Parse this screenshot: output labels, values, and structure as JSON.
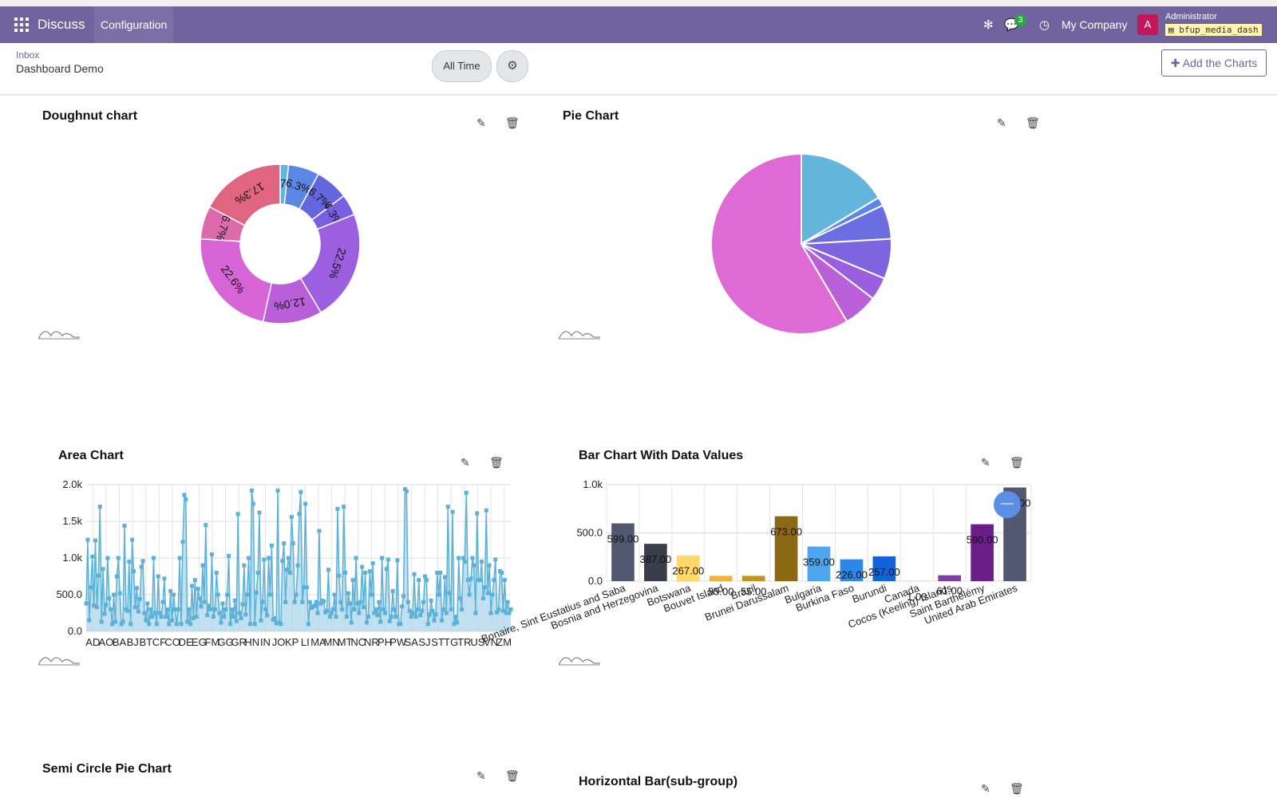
{
  "navbar": {
    "app_name": "Discuss",
    "menu": "Configuration",
    "message_count": "3",
    "company": "My Company",
    "avatar_letter": "A",
    "user": "Administrator",
    "database": "bfup_media_dash"
  },
  "control": {
    "breadcrumb_parent": "Inbox",
    "breadcrumb_current": "Dashboard Demo",
    "filter_label": "All Time",
    "add_button": "Add the Charts"
  },
  "cards": {
    "doughnut": "Doughnut chart",
    "pie": "Pie Chart",
    "area": "Area Chart",
    "bar": "Bar Chart With Data Values",
    "semi": "Semi Circle Pie Chart",
    "hbar": "Horizontal Bar(sub-group)"
  },
  "colors": {
    "accent": "#71639e",
    "doughnut": [
      "#64b5dc",
      "#5b86e5",
      "#6366dc",
      "#7a60e0",
      "#9c5fe0",
      "#b960d8",
      "#d865d5",
      "#dd6aab",
      "#e06581"
    ],
    "bars": [
      "#535871",
      "#3a3d4a",
      "#ffd86b",
      "#f0b33a",
      "#c29520",
      "#8b6914",
      "#4ea6f0",
      "#2e86e6",
      "#1262d8",
      "#b06fd0",
      "#7d3fa1",
      "#6a1f86"
    ]
  },
  "chart_data": [
    {
      "type": "pie",
      "variant": "doughnut",
      "title": "Doughnut chart",
      "slices": [
        1.7,
        6.3,
        6.7,
        4.3,
        22.5,
        12.0,
        22.6,
        6.7,
        17.3
      ],
      "labels": [
        "1.7%",
        "6.3%",
        "6.7%",
        "4.3%",
        "22.5%",
        "12.0%",
        "22.6%",
        "6.7%",
        "17.3%"
      ]
    },
    {
      "type": "pie",
      "title": "Pie Chart",
      "slices": [
        16,
        1.5,
        6,
        7,
        4,
        6,
        57
      ]
    },
    {
      "type": "area",
      "title": "Area Chart",
      "y_ticks": [
        "2.0k",
        "1.5k",
        "1.0k",
        "500.0",
        "0.0"
      ],
      "ylim": [
        0,
        2000
      ],
      "x_tick_labels": [
        "AD",
        "AO",
        "BA",
        "BJ",
        "BT",
        "CF",
        "CO",
        "DE",
        "EG",
        "FM",
        "GG",
        "GR",
        "HN",
        "IN",
        "JO",
        "KP",
        "LI",
        "MA",
        "MN",
        "MT",
        "NC",
        "NR",
        "PH",
        "PW",
        "SA",
        "SJ",
        "ST",
        "TG",
        "TR",
        "US",
        "VN",
        "ZM"
      ],
      "values": [
        380,
        1250,
        150,
        600,
        1020,
        350,
        1240,
        330,
        760,
        1700,
        130,
        850,
        240,
        360,
        1000,
        450,
        300,
        100,
        500,
        130,
        750,
        1000,
        520,
        100,
        130,
        1440,
        300,
        280,
        950,
        100,
        1250,
        820,
        330,
        590,
        270,
        440,
        880,
        960,
        250,
        150,
        380,
        100,
        300,
        200,
        1000,
        250,
        100,
        750,
        250,
        200,
        400,
        720,
        200,
        300,
        100,
        550,
        150,
        500,
        300,
        100,
        300,
        1000,
        100,
        1220,
        1860,
        1800,
        130,
        300,
        100,
        620,
        180,
        700,
        200,
        580,
        450,
        340,
        900,
        400,
        1450,
        220,
        350,
        300,
        1050,
        200,
        300,
        800,
        500,
        250,
        120,
        380,
        200,
        300,
        500,
        1030,
        100,
        300,
        200,
        420,
        140,
        1600,
        250,
        180,
        370,
        900,
        230,
        500,
        1000,
        100,
        1920,
        1740,
        100,
        530,
        800,
        1620,
        150,
        400,
        980,
        300,
        220,
        1000,
        500,
        1170,
        160,
        180,
        110,
        1920,
        120,
        100,
        960,
        1200,
        400,
        840,
        1000,
        800,
        1560,
        1200,
        400,
        500,
        900,
        1600,
        1900,
        400,
        600,
        1740,
        600,
        100,
        400,
        320,
        340,
        350,
        400,
        250,
        1370,
        380,
        420,
        410,
        260,
        280,
        840,
        200,
        250,
        300,
        500,
        200,
        1670,
        760,
        400,
        300,
        1700,
        800,
        200,
        520,
        380,
        120,
        700,
        300,
        1000,
        380,
        250,
        400,
        880,
        330,
        800,
        120,
        200,
        820,
        500,
        930,
        250,
        300,
        220,
        400,
        130,
        1000,
        300,
        250,
        850,
        980,
        140,
        200,
        550,
        300,
        200,
        970,
        100,
        100,
        340,
        480,
        1940,
        1910,
        400,
        280,
        200,
        250,
        780,
        200,
        300,
        700,
        220,
        280,
        400,
        750,
        700,
        100,
        230,
        420,
        280,
        150,
        230,
        800,
        500,
        800,
        150,
        300,
        740,
        250,
        1700,
        520,
        300,
        1630,
        100,
        200,
        120,
        1000,
        450,
        300,
        1000,
        950,
        1890,
        700,
        500,
        720,
        1000,
        900,
        250,
        1610,
        700,
        700,
        950,
        450,
        600,
        1650,
        520,
        900,
        250,
        500,
        700,
        980,
        260,
        300,
        820,
        800,
        280,
        700,
        250,
        400,
        250,
        300
      ]
    },
    {
      "type": "bar",
      "title": "Bar Chart With Data Values",
      "y_ticks": [
        "1.0k",
        "500.0",
        "0.0"
      ],
      "ylim": [
        0,
        1000
      ],
      "categories": [
        "Bonaire, Sint Eustatius and Saba",
        "Bosnia and Herzegovina",
        "Botswana",
        "Bouvet Island",
        "Brazil",
        "Brunei Darussalam",
        "Bulgaria",
        "Burkina Faso",
        "Burundi",
        "Canada",
        "Cocos (Keeling) Islands",
        "Saint Barthélémy",
        "United Arab Emirates"
      ],
      "values": [
        599,
        387,
        267,
        55,
        55,
        673,
        359,
        226,
        257,
        1,
        61,
        590,
        971
      ],
      "value_labels": [
        "599.00",
        "387.00",
        "267.00",
        "55.00",
        "55.00",
        "673.00",
        "359.00",
        "226.00",
        "257.00",
        "1.00",
        "61.00",
        "590.00",
        "971.00"
      ]
    }
  ]
}
